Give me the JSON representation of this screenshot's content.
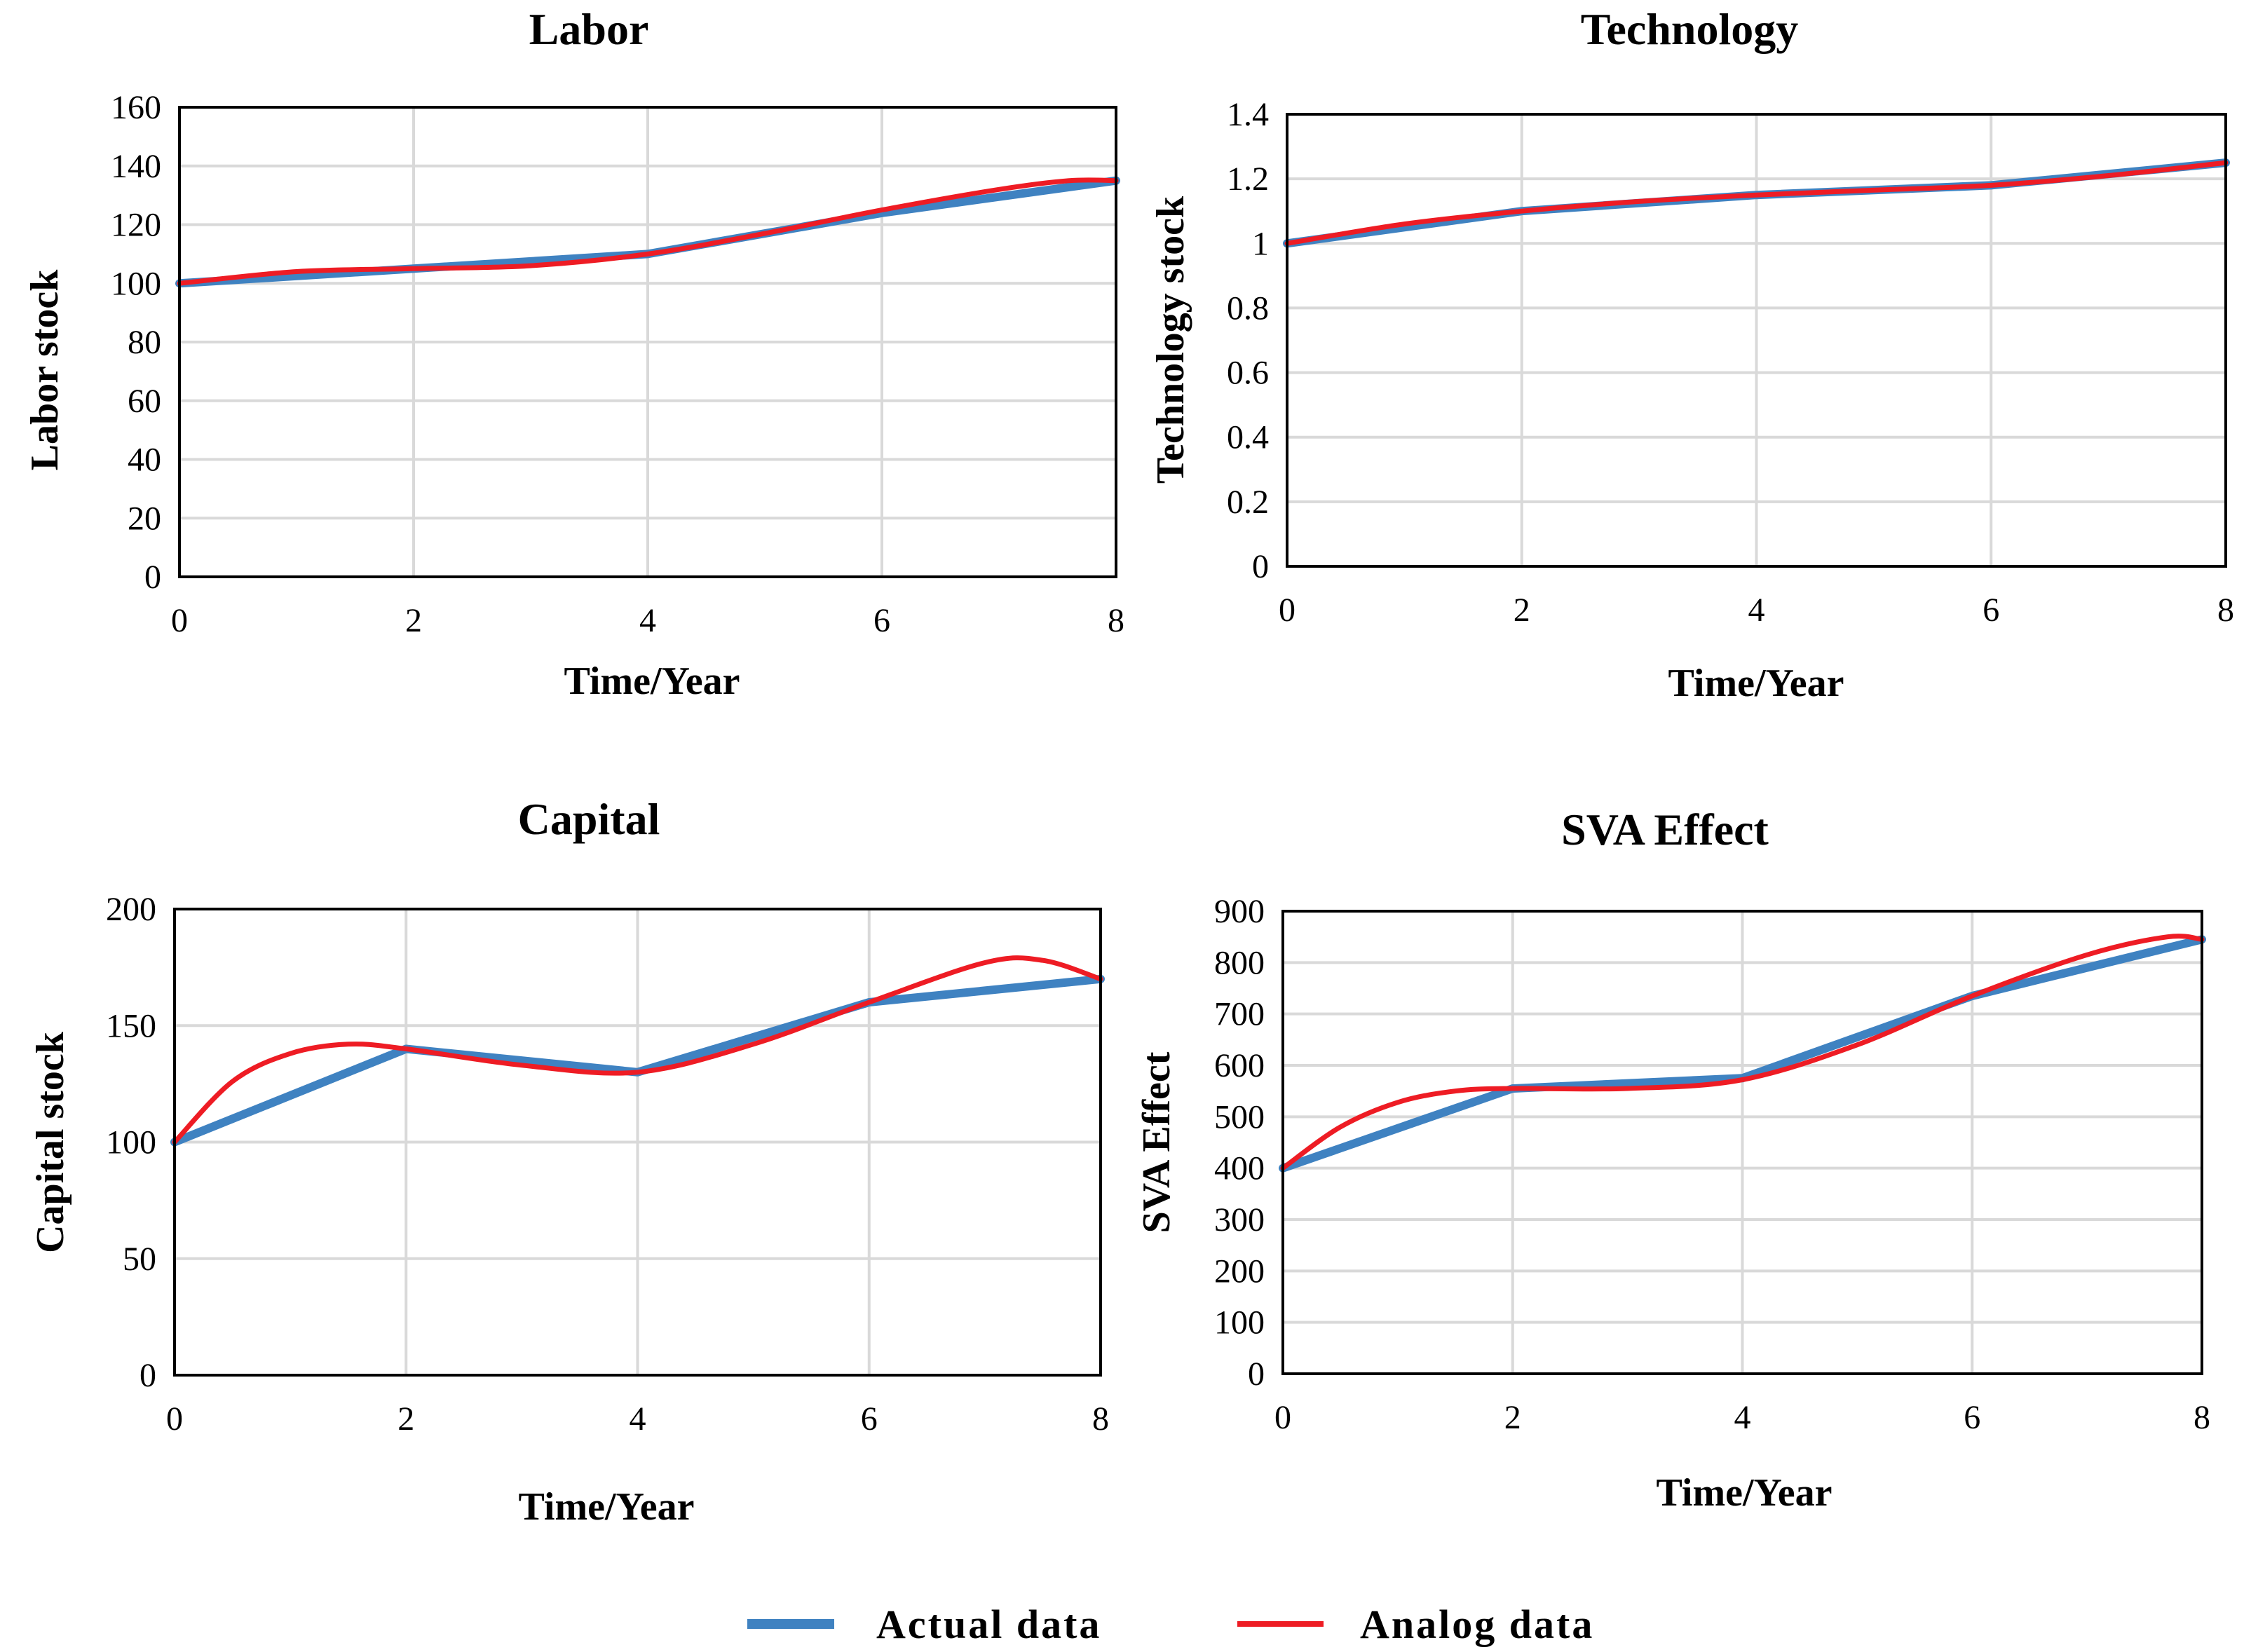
{
  "colors": {
    "actual": "#3f82c1",
    "analog": "#ee1c24"
  },
  "legend": {
    "actual_label": "Actual data",
    "analog_label": "Analog data"
  },
  "chart_data": [
    {
      "type": "line",
      "title": "Labor",
      "xlabel": "Time/Year",
      "ylabel": "Labor  stock",
      "xlim": [
        0,
        8
      ],
      "ylim": [
        0,
        160
      ],
      "xticks": [
        "0",
        "2",
        "4",
        "6",
        "8"
      ],
      "yticks": [
        "0",
        "20",
        "40",
        "60",
        "80",
        "100",
        "120",
        "140",
        "160"
      ],
      "series": [
        {
          "name": "Actual data",
          "x": [
            0,
            2,
            4,
            6,
            8
          ],
          "values": [
            100,
            105,
            110,
            124,
            135
          ]
        },
        {
          "name": "Analog data",
          "x": [
            0,
            1,
            2,
            3,
            4,
            5,
            6,
            7,
            7.6,
            8
          ],
          "values": [
            100,
            104,
            105,
            106,
            110,
            117,
            125,
            132,
            135,
            135
          ]
        }
      ]
    },
    {
      "type": "line",
      "title": "Technology",
      "xlabel": "Time/Year",
      "ylabel": "Technology stock",
      "xlim": [
        0,
        8
      ],
      "ylim": [
        0,
        1.4
      ],
      "xticks": [
        "0",
        "2",
        "4",
        "6",
        "8"
      ],
      "yticks": [
        "0",
        "0.2",
        "0.4",
        "0.6",
        "0.8",
        "1",
        "1.2",
        "1.4"
      ],
      "series": [
        {
          "name": "Actual data",
          "x": [
            0,
            2,
            4,
            6,
            8
          ],
          "values": [
            1.0,
            1.1,
            1.15,
            1.18,
            1.25
          ]
        },
        {
          "name": "Analog data",
          "x": [
            0,
            1,
            2,
            3,
            4,
            5,
            6,
            7,
            8
          ],
          "values": [
            1.0,
            1.06,
            1.1,
            1.13,
            1.15,
            1.165,
            1.18,
            1.21,
            1.25
          ]
        }
      ]
    },
    {
      "type": "line",
      "title": "Capital",
      "xlabel": "Time/Year",
      "ylabel": "Capital stock",
      "xlim": [
        0,
        8
      ],
      "ylim": [
        0,
        200
      ],
      "xticks": [
        "0",
        "2",
        "4",
        "6",
        "8"
      ],
      "yticks": [
        "0",
        "50",
        "100",
        "150",
        "200"
      ],
      "series": [
        {
          "name": "Actual data",
          "x": [
            0,
            2,
            4,
            6,
            8
          ],
          "values": [
            100,
            140,
            130,
            160,
            170
          ]
        },
        {
          "name": "Analog data",
          "x": [
            0,
            0.5,
            1,
            1.5,
            2,
            3,
            4,
            5,
            6,
            7,
            7.5,
            8
          ],
          "values": [
            100,
            126,
            138,
            142,
            140,
            133,
            130,
            142,
            160,
            177,
            178,
            170
          ]
        }
      ]
    },
    {
      "type": "line",
      "title": "SVA Effect",
      "xlabel": "Time/Year",
      "ylabel": "SVA Effect",
      "xlim": [
        0,
        8
      ],
      "ylim": [
        0,
        900
      ],
      "xticks": [
        "0",
        "2",
        "4",
        "6",
        "8"
      ],
      "yticks": [
        "0",
        "100",
        "200",
        "300",
        "400",
        "500",
        "600",
        "700",
        "800",
        "900"
      ],
      "series": [
        {
          "name": "Actual data",
          "x": [
            0,
            2,
            4,
            6,
            8
          ],
          "values": [
            400,
            555,
            575,
            735,
            845
          ]
        },
        {
          "name": "Analog data",
          "x": [
            0,
            0.5,
            1,
            1.5,
            2,
            3,
            4,
            5,
            6,
            7,
            7.7,
            8
          ],
          "values": [
            400,
            480,
            528,
            550,
            555,
            555,
            572,
            640,
            735,
            815,
            850,
            845
          ]
        }
      ]
    }
  ]
}
